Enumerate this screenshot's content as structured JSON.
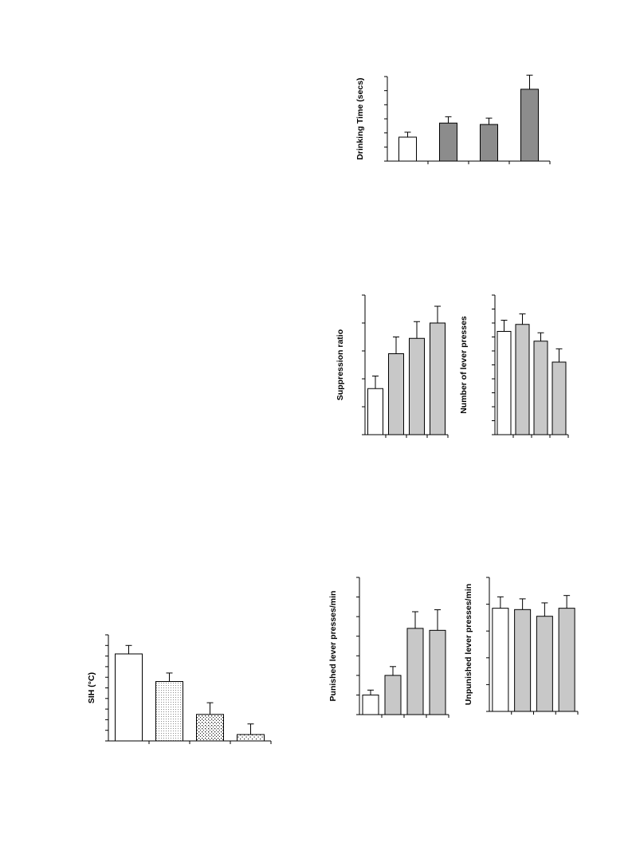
{
  "chart_data": [
    {
      "id": "drinking",
      "type": "bar",
      "title": "",
      "ylabel": "Drinking Time (secs)",
      "xlabel": "",
      "categories": [
        "",
        "",
        "",
        ""
      ],
      "ylim": [
        0,
        6
      ],
      "yticks": [
        0,
        1,
        2,
        3,
        4,
        5,
        6
      ],
      "values": [
        1.7,
        2.7,
        2.6,
        5.1
      ],
      "errors": [
        0.35,
        0.45,
        0.45,
        1.0
      ],
      "fills": [
        "open",
        "dark",
        "dark",
        "dark"
      ],
      "grid": false
    },
    {
      "id": "suppression",
      "type": "bar",
      "title": "",
      "ylabel": "Suppression ratio",
      "xlabel": "",
      "categories": [
        "",
        "",
        "",
        ""
      ],
      "ylim": [
        0,
        5
      ],
      "yticks": [
        0,
        1,
        2,
        3,
        4,
        5
      ],
      "values": [
        1.65,
        2.9,
        3.45,
        4.0
      ],
      "errors": [
        0.45,
        0.6,
        0.6,
        0.6
      ],
      "fills": [
        "open",
        "grey",
        "grey",
        "grey"
      ],
      "grid": false
    },
    {
      "id": "leverpresses",
      "type": "bar",
      "title": "",
      "ylabel": "Number of lever presses",
      "xlabel": "",
      "categories": [
        "",
        "",
        "",
        ""
      ],
      "ylim": [
        0,
        10
      ],
      "yticks": [
        0,
        1,
        2,
        3,
        4,
        5,
        6,
        7,
        8,
        9,
        10
      ],
      "values": [
        7.4,
        7.9,
        6.7,
        5.2
      ],
      "errors": [
        0.8,
        0.75,
        0.6,
        0.95
      ],
      "fills": [
        "open",
        "grey",
        "grey",
        "grey"
      ],
      "grid": false
    },
    {
      "id": "sih",
      "type": "bar",
      "title": "",
      "ylabel": "SIH (°C)",
      "xlabel": "",
      "categories": [
        "",
        "",
        "",
        ""
      ],
      "ylim": [
        0,
        10
      ],
      "yticks": [
        0,
        1,
        2,
        3,
        4,
        5,
        6,
        7,
        8,
        9,
        10
      ],
      "values": [
        8.2,
        5.6,
        2.5,
        0.6
      ],
      "errors": [
        0.8,
        0.8,
        1.1,
        1.0
      ],
      "fills": [
        "open",
        "dots-fine",
        "dots-medium",
        "dots-sparse"
      ],
      "grid": false
    },
    {
      "id": "punished",
      "type": "bar",
      "title": "",
      "ylabel": "Punished lever presses/min",
      "xlabel": "",
      "categories": [
        "",
        "",
        "",
        ""
      ],
      "ylim": [
        0,
        7
      ],
      "yticks": [
        0,
        1,
        2,
        3,
        4,
        5,
        6,
        7
      ],
      "values": [
        1.0,
        2.0,
        4.4,
        4.3
      ],
      "errors": [
        0.25,
        0.45,
        0.85,
        1.05
      ],
      "fills": [
        "open",
        "grey",
        "grey",
        "grey"
      ],
      "grid": false
    },
    {
      "id": "unpunished",
      "type": "bar",
      "title": "",
      "ylabel": "Unpunished lever presses/min",
      "xlabel": "",
      "categories": [
        "",
        "",
        "",
        ""
      ],
      "ylim": [
        0,
        10
      ],
      "yticks": [
        0,
        2,
        4,
        6,
        8,
        10
      ],
      "values": [
        7.7,
        7.6,
        7.1,
        7.7
      ],
      "errors": [
        0.85,
        0.8,
        1.0,
        0.95
      ],
      "fills": [
        "open",
        "grey",
        "grey",
        "grey"
      ],
      "grid": false
    }
  ]
}
